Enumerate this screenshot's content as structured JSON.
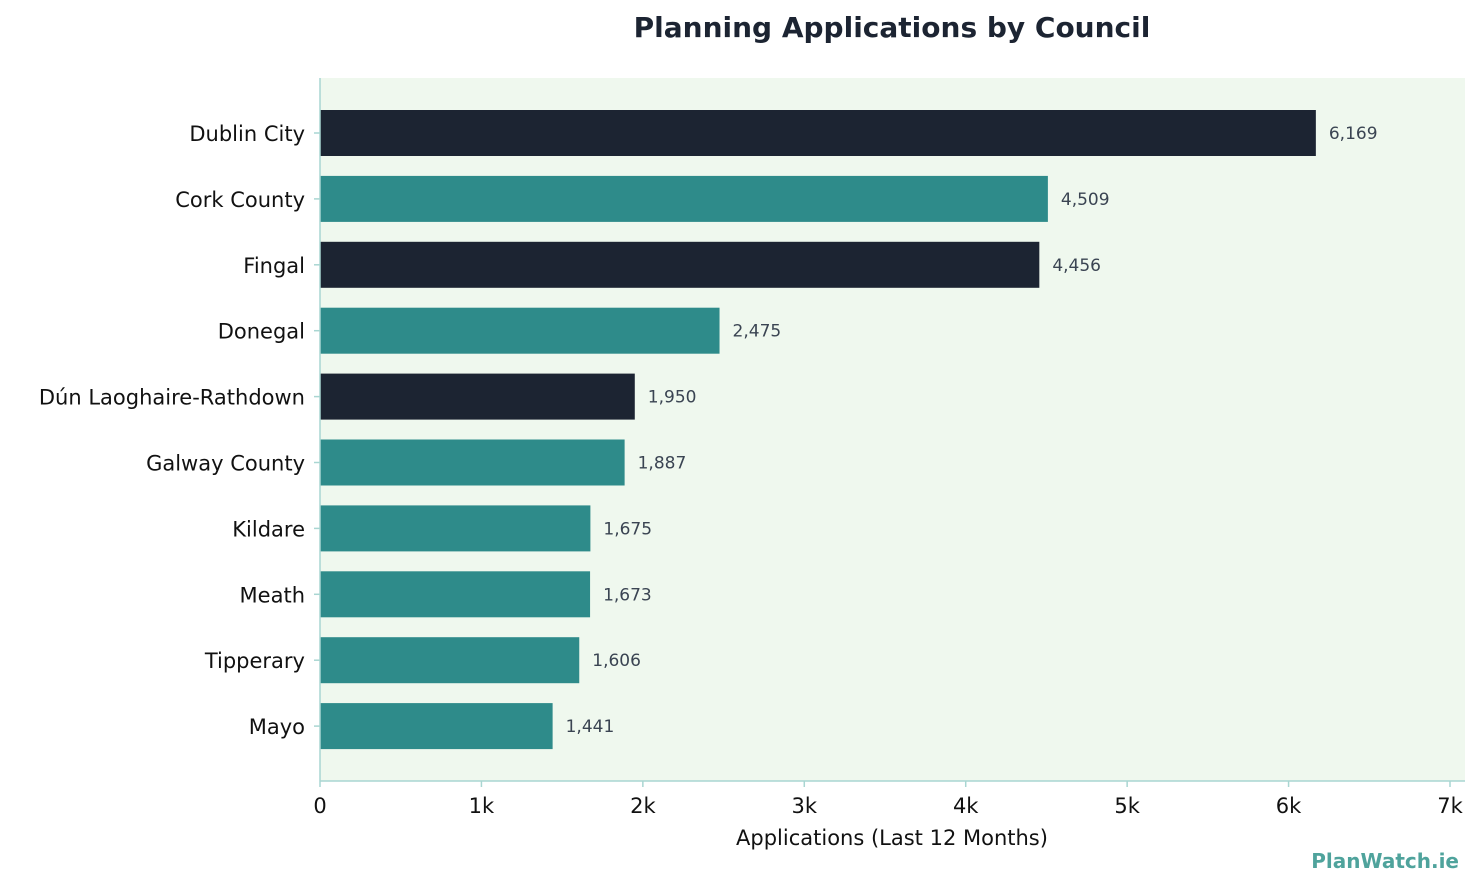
{
  "brand": {
    "text": "PlanWatch.ie",
    "color": "#4fa39c"
  },
  "chart_data": {
    "type": "bar",
    "orientation": "horizontal",
    "title": "Planning Applications by Council",
    "xlabel": "Applications (Last 12 Months)",
    "ylabel": "",
    "xlim": [
      0,
      7000
    ],
    "xticks": [
      0,
      1000,
      2000,
      3000,
      4000,
      5000,
      6000,
      7000
    ],
    "xtick_labels": [
      "0",
      "1k",
      "2k",
      "3k",
      "4k",
      "5k",
      "6k",
      "7k"
    ],
    "grid": false,
    "categories": [
      "Dublin City",
      "Cork County",
      "Fingal",
      "Donegal",
      "Dún Laoghaire-Rathdown",
      "Galway County",
      "Kildare",
      "Meath",
      "Tipperary",
      "Mayo"
    ],
    "values": [
      6169,
      4509,
      4456,
      2475,
      1950,
      1887,
      1675,
      1673,
      1606,
      1441
    ],
    "value_labels": [
      "6,169",
      "4,509",
      "4,456",
      "2,475",
      "1,950",
      "1,887",
      "1,675",
      "1,673",
      "1,606",
      "1,441"
    ],
    "bar_colors": [
      "#1c2432",
      "#2e8b8a",
      "#1c2432",
      "#2e8b8a",
      "#1c2432",
      "#2e8b8a",
      "#2e8b8a",
      "#2e8b8a",
      "#2e8b8a",
      "#2e8b8a"
    ],
    "colors": {
      "plot_background": "#eff8ee",
      "axis_line": "#a9d6d2",
      "title": "#1c2432",
      "value_label": "#3a4452"
    }
  }
}
